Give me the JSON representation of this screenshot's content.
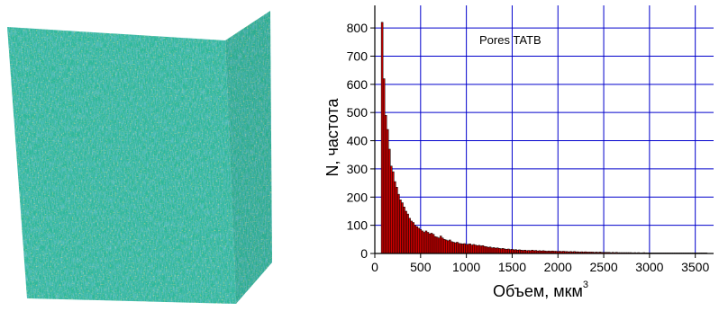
{
  "figure": {
    "volume_colors": {
      "base": "#2fb89a",
      "blue": "#2e8fc8",
      "yellow": "#c9d93a",
      "speck": "#e8e04a"
    }
  },
  "chart_data": {
    "type": "bar",
    "annotation": "Pores TATB",
    "xlabel_main": "Объем, мкм",
    "xlabel_sup": "3",
    "ylabel": "N, частота",
    "xlim": [
      0,
      3700
    ],
    "ylim": [
      0,
      880
    ],
    "x_ticks": [
      0,
      500,
      1000,
      1500,
      2000,
      2500,
      3000,
      3500
    ],
    "y_ticks": [
      0,
      100,
      200,
      300,
      400,
      500,
      600,
      700,
      800
    ],
    "grid": true,
    "grid_color": "#0000cc",
    "bar_color": "#cc0000",
    "bar_edge_color": "#000000",
    "bin_width": 20,
    "bin_start": 70,
    "values": [
      820,
      620,
      490,
      440,
      370,
      310,
      290,
      255,
      235,
      210,
      190,
      180,
      165,
      150,
      140,
      125,
      115,
      110,
      100,
      95,
      90,
      85,
      80,
      75,
      80,
      75,
      70,
      72,
      68,
      60,
      58,
      55,
      62,
      55,
      50,
      48,
      45,
      48,
      42,
      40,
      38,
      40,
      36,
      35,
      34,
      35,
      32,
      33,
      34,
      30,
      32,
      30,
      28,
      29,
      27,
      28,
      25,
      24,
      22,
      23,
      20,
      21,
      19,
      20,
      18,
      17,
      18,
      16,
      15,
      16,
      14,
      15,
      13,
      14,
      12,
      13,
      12,
      11,
      12,
      10,
      11,
      10,
      12,
      10,
      11,
      9,
      10,
      9,
      10,
      9,
      8,
      9,
      8,
      9,
      8,
      8,
      7,
      8,
      7,
      8,
      7,
      7,
      6,
      7,
      6,
      7,
      6,
      6,
      5,
      6,
      5,
      6,
      5,
      5,
      5,
      5,
      4,
      5,
      4,
      5,
      4,
      4,
      4,
      4,
      4,
      3,
      4,
      3,
      4,
      3,
      3,
      3,
      3,
      3,
      3,
      3,
      3,
      2,
      3,
      2,
      3,
      2,
      2,
      3,
      2,
      2,
      2,
      2,
      2,
      2,
      2,
      2,
      2,
      2,
      2,
      2,
      2,
      2,
      2,
      2,
      2,
      2,
      2,
      2,
      2,
      2,
      2,
      2,
      2,
      2,
      2,
      2,
      2,
      2,
      2,
      2,
      2,
      2
    ]
  }
}
